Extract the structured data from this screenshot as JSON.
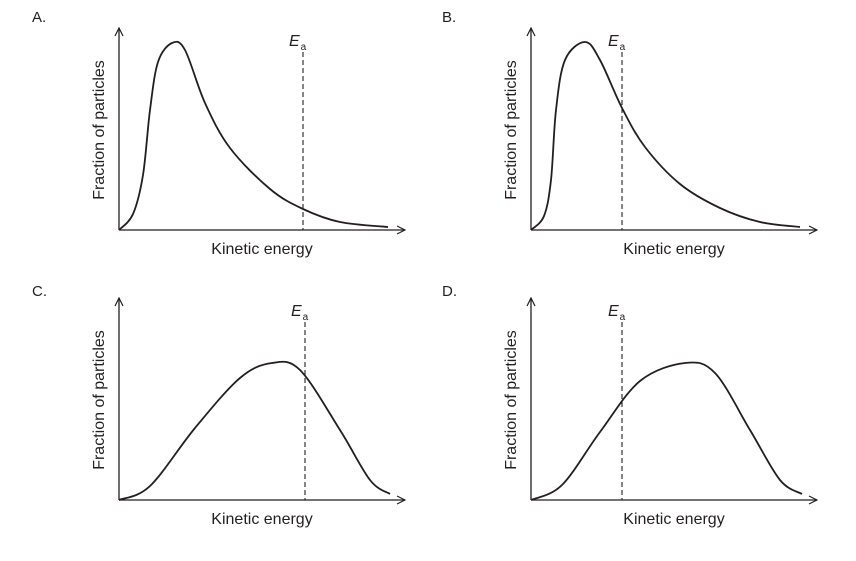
{
  "x_axis_label": "Kinetic energy",
  "y_axis_label": "Fraction of particles",
  "threshold_label": {
    "main": "E",
    "subscript": "a"
  },
  "panels": [
    {
      "letter": "A.",
      "shape": "narrow peak at low energy",
      "threshold_position": "right, well past the peak"
    },
    {
      "letter": "B.",
      "shape": "narrow peak at low energy",
      "threshold_position": "just past the peak"
    },
    {
      "letter": "C.",
      "shape": "broad peak at higher energy",
      "threshold_position": "just past the peak"
    },
    {
      "letter": "D.",
      "shape": "broad peak at higher energy",
      "threshold_position": "before the peak"
    }
  ],
  "colors": {
    "line": "#231f20",
    "background": "#ffffff"
  }
}
